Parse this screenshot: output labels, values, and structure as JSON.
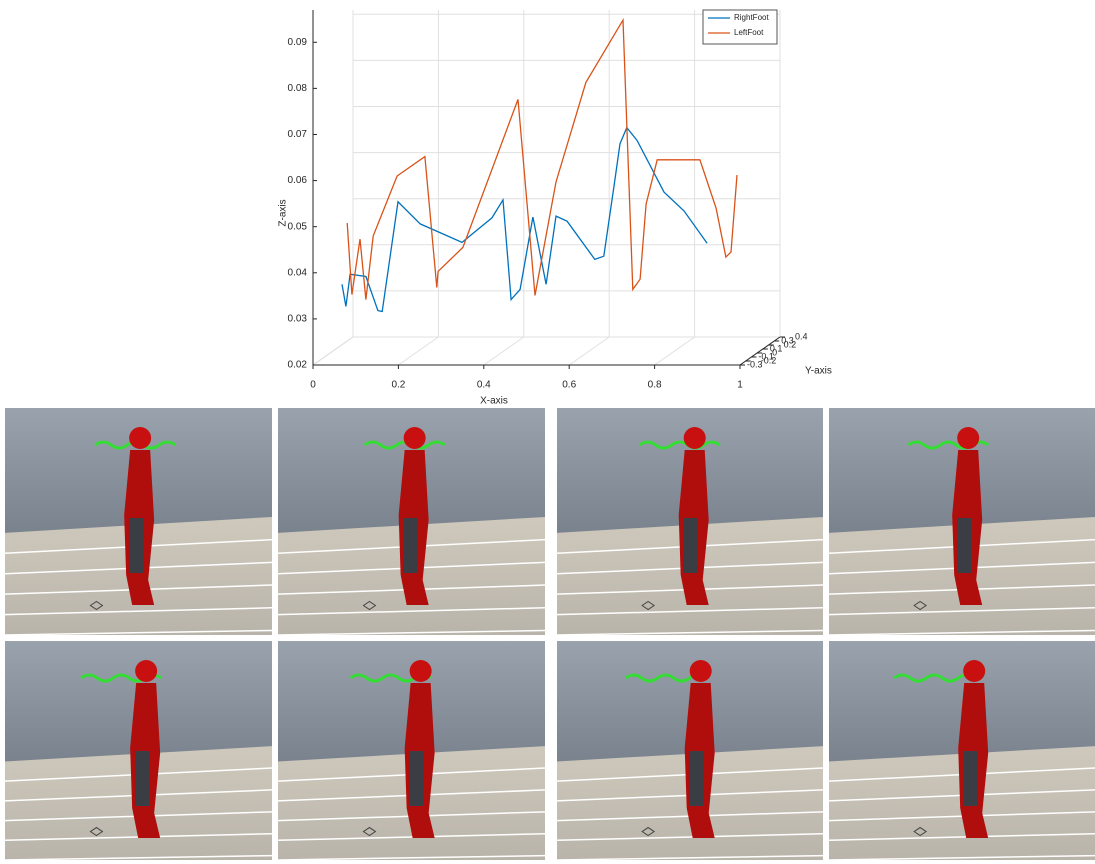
{
  "chart_data": {
    "type": "line3d",
    "xlabel": "X-axis",
    "ylabel": "Y-axis",
    "zlabel": "Z-axis",
    "xlim": [
      0,
      1
    ],
    "xticks": [
      0,
      0.2,
      0.4,
      0.6,
      0.8,
      1
    ],
    "ylim": [
      -0.3,
      0.4
    ],
    "yticks": [
      -0.3,
      -0.2,
      -0.1,
      0,
      0.1,
      0.2,
      0.3,
      0.4
    ],
    "zlim": [
      0.02,
      0.097
    ],
    "zticks": [
      0.02,
      0.03,
      0.04,
      0.05,
      0.06,
      0.07,
      0.08,
      0.09
    ],
    "grid": true,
    "legend": "upper right",
    "series": [
      {
        "name": "RightFoot",
        "color": "#0072bd",
        "x": [
          0.068,
          0.077,
          0.087,
          0.124,
          0.152,
          0.162,
          0.199,
          0.251,
          0.349,
          0.419,
          0.445,
          0.464,
          0.485,
          0.515,
          0.546,
          0.569,
          0.595,
          0.66,
          0.681,
          0.705,
          0.719,
          0.735,
          0.759,
          0.822,
          0.869,
          0.923
        ],
        "values": [
          0.0375,
          0.0327,
          0.0397,
          0.0392,
          0.0318,
          0.0316,
          0.0554,
          0.0506,
          0.0466,
          0.0519,
          0.0558,
          0.0342,
          0.0364,
          0.0521,
          0.0375,
          0.0523,
          0.0512,
          0.0429,
          0.0436,
          0.0588,
          0.068,
          0.0715,
          0.0687,
          0.0575,
          0.0534,
          0.0464
        ]
      },
      {
        "name": "LeftFoot",
        "color": "#d95319",
        "x": [
          0.08,
          0.091,
          0.11,
          0.124,
          0.141,
          0.197,
          0.262,
          0.29,
          0.293,
          0.351,
          0.48,
          0.52,
          0.569,
          0.639,
          0.726,
          0.749,
          0.766,
          0.78,
          0.806,
          0.906,
          0.944,
          0.967,
          0.979,
          0.993
        ],
        "values": [
          0.0508,
          0.0353,
          0.0473,
          0.0342,
          0.048,
          0.061,
          0.0652,
          0.0368,
          0.0403,
          0.0455,
          0.0776,
          0.0351,
          0.0597,
          0.0813,
          0.0948,
          0.0364,
          0.0386,
          0.0549,
          0.0645,
          0.0645,
          0.054,
          0.0434,
          0.0445,
          0.0612
        ]
      }
    ]
  }
}
